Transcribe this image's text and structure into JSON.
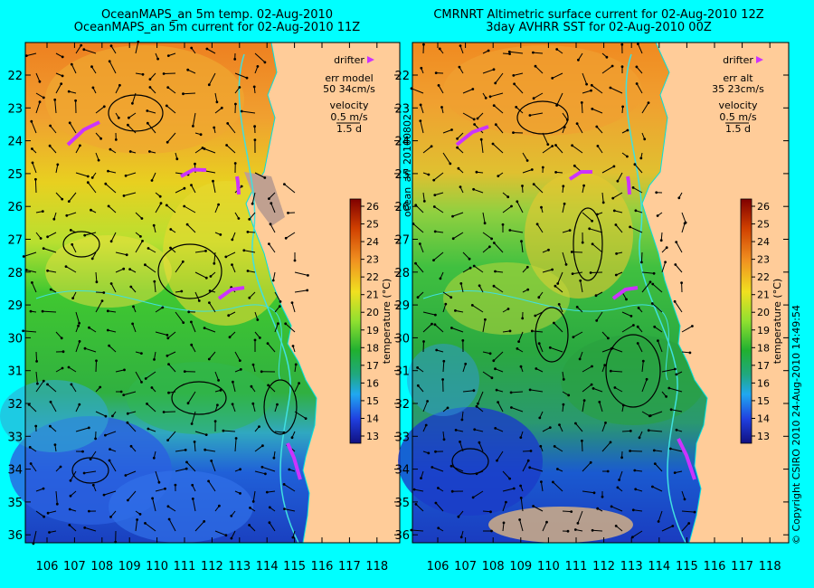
{
  "panels": [
    {
      "title1": "OceanMAPS_an 5m temp. 02-Aug-2010",
      "title2": "OceanMAPS_an 5m current for 02-Aug-2010 11Z",
      "legend": {
        "drifter": "drifter",
        "err1": "err model",
        "err2": "50 34cm/s",
        "velocity": "velocity",
        "vel_val": "0.5 m/s",
        "days": "1.5 d"
      }
    },
    {
      "title1": "CMRNRT Altimetric surface current for 02-Aug-2010 12Z",
      "title2": "3day AVHRR SST for 02-Aug-2010 00Z",
      "legend": {
        "drifter": "drifter",
        "err1": "err alt",
        "err2": "35 23cm/s",
        "velocity": "velocity",
        "vel_val": "0.5 m/s",
        "days": "1.5 d"
      }
    }
  ],
  "lat_ticks": [
    "22",
    "23",
    "24",
    "25",
    "26",
    "27",
    "28",
    "29",
    "30",
    "31",
    "32",
    "33",
    "34",
    "35",
    "36"
  ],
  "lon_ticks": [
    "106",
    "107",
    "108",
    "109",
    "110",
    "111",
    "112",
    "113",
    "114",
    "115",
    "116",
    "117",
    "118"
  ],
  "colorbar": {
    "values": [
      "26",
      "25",
      "24",
      "23",
      "22",
      "21",
      "20",
      "19",
      "18",
      "17",
      "16",
      "15",
      "14",
      "13"
    ],
    "label": "temperature (°C)"
  },
  "side_label": "ocean_an_20100802",
  "copyright": "© Copyright CSIRO 2010   24-Aug-2010 14:49:54",
  "colors": {
    "background": "#00ffff",
    "land": "#ffcc99",
    "drifter": "#cc33ff",
    "warm": "#f08a1a",
    "cool": "#1a3cd0"
  }
}
